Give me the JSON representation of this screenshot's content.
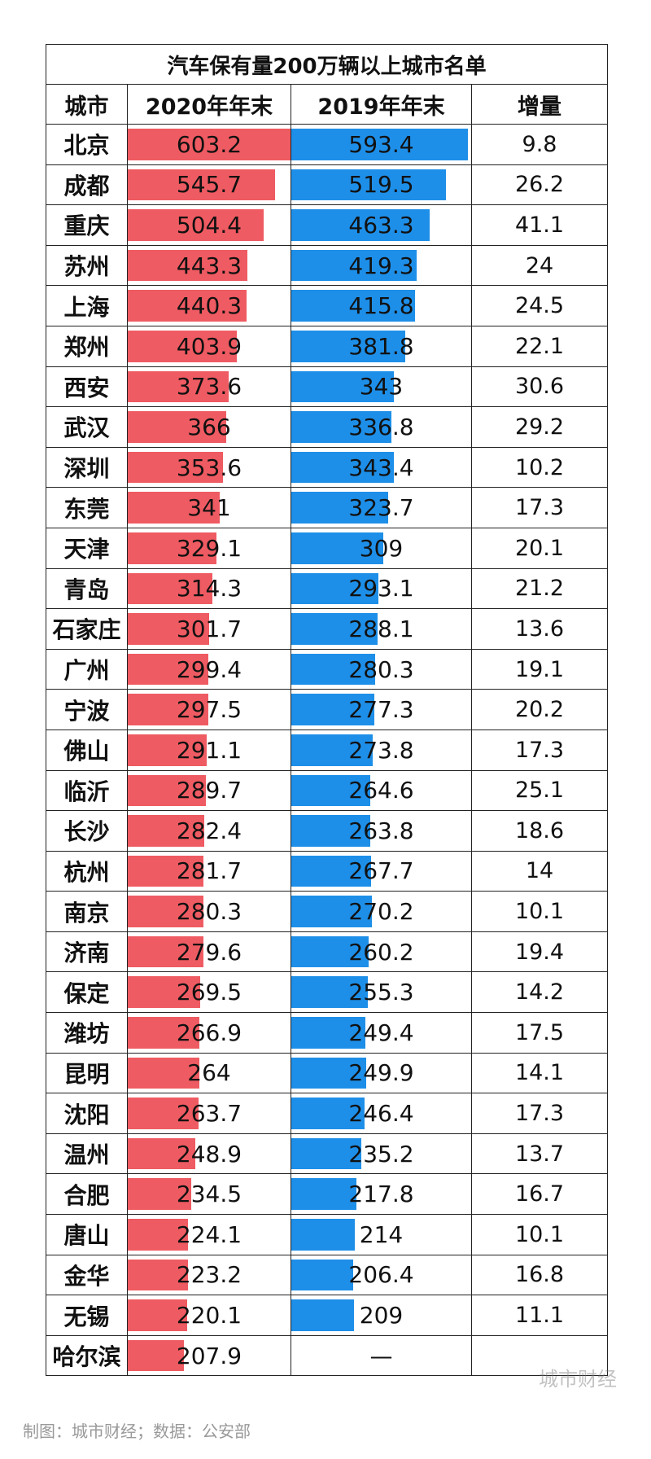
{
  "chart_data": {
    "type": "table",
    "title": "汽车保有量200万辆以上城市名单",
    "columns": [
      "城市",
      "2020年年末",
      "2019年年末",
      "增量"
    ],
    "bar_max": 603.2,
    "colors": {
      "2020": "#ef5b62",
      "2019": "#1e8fe8"
    },
    "rows": [
      {
        "city": "北京",
        "y2020": 603.2,
        "y2019": 593.4,
        "inc": "9.8"
      },
      {
        "city": "成都",
        "y2020": 545.7,
        "y2019": 519.5,
        "inc": "26.2"
      },
      {
        "city": "重庆",
        "y2020": 504.4,
        "y2019": 463.3,
        "inc": "41.1"
      },
      {
        "city": "苏州",
        "y2020": 443.3,
        "y2019": 419.3,
        "inc": "24"
      },
      {
        "city": "上海",
        "y2020": 440.3,
        "y2019": 415.8,
        "inc": "24.5"
      },
      {
        "city": "郑州",
        "y2020": 403.9,
        "y2019": 381.8,
        "inc": "22.1"
      },
      {
        "city": "西安",
        "y2020": 373.6,
        "y2019": 343,
        "inc": "30.6"
      },
      {
        "city": "武汉",
        "y2020": 366,
        "y2019": 336.8,
        "inc": "29.2"
      },
      {
        "city": "深圳",
        "y2020": 353.6,
        "y2019": 343.4,
        "inc": "10.2"
      },
      {
        "city": "东莞",
        "y2020": 341,
        "y2019": 323.7,
        "inc": "17.3"
      },
      {
        "city": "天津",
        "y2020": 329.1,
        "y2019": 309,
        "inc": "20.1"
      },
      {
        "city": "青岛",
        "y2020": 314.3,
        "y2019": 293.1,
        "inc": "21.2"
      },
      {
        "city": "石家庄",
        "y2020": 301.7,
        "y2019": 288.1,
        "inc": "13.6"
      },
      {
        "city": "广州",
        "y2020": 299.4,
        "y2019": 280.3,
        "inc": "19.1"
      },
      {
        "city": "宁波",
        "y2020": 297.5,
        "y2019": 277.3,
        "inc": "20.2"
      },
      {
        "city": "佛山",
        "y2020": 291.1,
        "y2019": 273.8,
        "inc": "17.3"
      },
      {
        "city": "临沂",
        "y2020": 289.7,
        "y2019": 264.6,
        "inc": "25.1"
      },
      {
        "city": "长沙",
        "y2020": 282.4,
        "y2019": 263.8,
        "inc": "18.6"
      },
      {
        "city": "杭州",
        "y2020": 281.7,
        "y2019": 267.7,
        "inc": "14"
      },
      {
        "city": "南京",
        "y2020": 280.3,
        "y2019": 270.2,
        "inc": "10.1"
      },
      {
        "city": "济南",
        "y2020": 279.6,
        "y2019": 260.2,
        "inc": "19.4"
      },
      {
        "city": "保定",
        "y2020": 269.5,
        "y2019": 255.3,
        "inc": "14.2"
      },
      {
        "city": "潍坊",
        "y2020": 266.9,
        "y2019": 249.4,
        "inc": "17.5"
      },
      {
        "city": "昆明",
        "y2020": 264,
        "y2019": 249.9,
        "inc": "14.1"
      },
      {
        "city": "沈阳",
        "y2020": 263.7,
        "y2019": 246.4,
        "inc": "17.3"
      },
      {
        "city": "温州",
        "y2020": 248.9,
        "y2019": 235.2,
        "inc": "13.7"
      },
      {
        "city": "合肥",
        "y2020": 234.5,
        "y2019": 217.8,
        "inc": "16.7"
      },
      {
        "city": "唐山",
        "y2020": 224.1,
        "y2019": 214,
        "inc": "10.1"
      },
      {
        "city": "金华",
        "y2020": 223.2,
        "y2019": 206.4,
        "inc": "16.8"
      },
      {
        "city": "无锡",
        "y2020": 220.1,
        "y2019": 209,
        "inc": "11.1"
      },
      {
        "city": "哈尔滨",
        "y2020": 207.9,
        "y2019": null,
        "y2019_text": "—",
        "inc": ""
      }
    ]
  },
  "watermark": "城市财经",
  "caption": "制图：城市财经；数据：公安部"
}
